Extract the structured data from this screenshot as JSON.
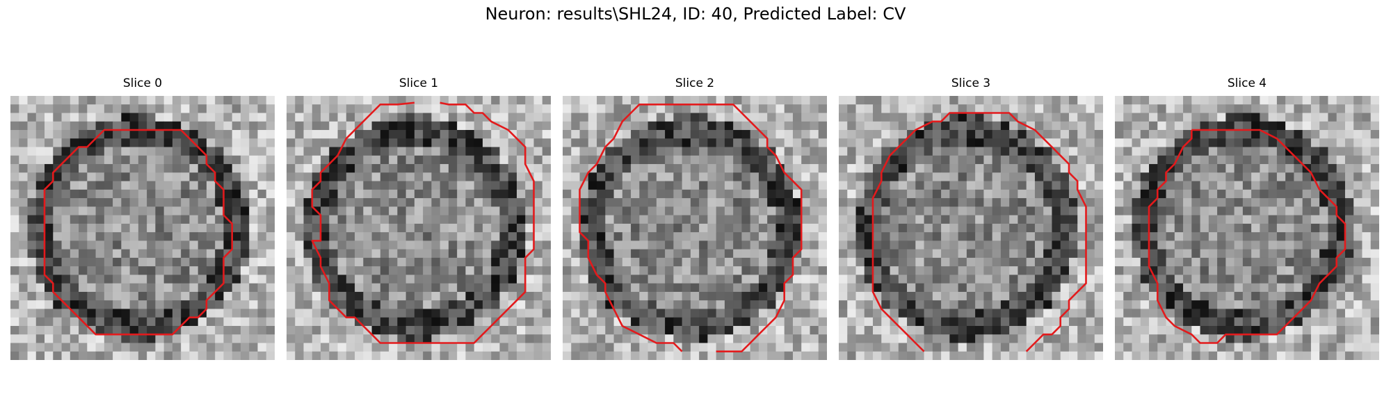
{
  "figure": {
    "title": "Neuron: results\\SHL24, ID: 40, Predicted Label: CV"
  },
  "colors": {
    "contour": "#e31a1c",
    "background": "#ffffff"
  },
  "panels": [
    {
      "title": "Slice 0"
    },
    {
      "title": "Slice 1"
    },
    {
      "title": "Slice 2"
    },
    {
      "title": "Slice 3"
    },
    {
      "title": "Slice 4"
    }
  ]
}
